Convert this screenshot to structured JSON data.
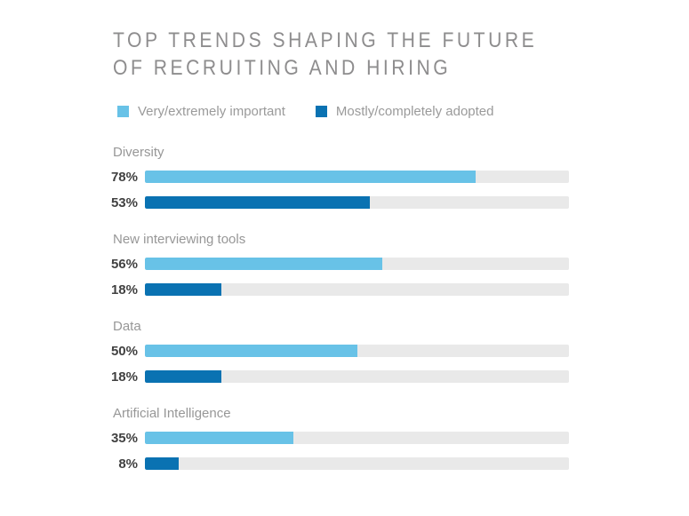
{
  "title": {
    "line1": "TOP TRENDS SHAPING THE FUTURE",
    "line2": "OF RECRUITING AND HIRING",
    "color": "#8E8D8E"
  },
  "chart_data": {
    "type": "bar",
    "orientation": "horizontal",
    "title": "TOP TRENDS SHAPING THE FUTURE OF RECRUITING AND HIRING",
    "categories": [
      "Diversity",
      "New interviewing tools",
      "Data",
      "Artificial Intelligence"
    ],
    "series": [
      {
        "name": "Very/extremely important",
        "color": "#68C2E7",
        "values": [
          78,
          56,
          50,
          35
        ],
        "value_labels": [
          "78%",
          "56%",
          "50%",
          "35%"
        ]
      },
      {
        "name": "Mostly/completely adopted",
        "color": "#0A72B2",
        "values": [
          53,
          18,
          18,
          8
        ],
        "value_labels": [
          "53%",
          "18%",
          "18%",
          "8%"
        ]
      }
    ],
    "value_format": "percent",
    "xlim": [
      0,
      100
    ],
    "grid": false,
    "legend_position": "top",
    "track_color": "#E9E9E9"
  }
}
